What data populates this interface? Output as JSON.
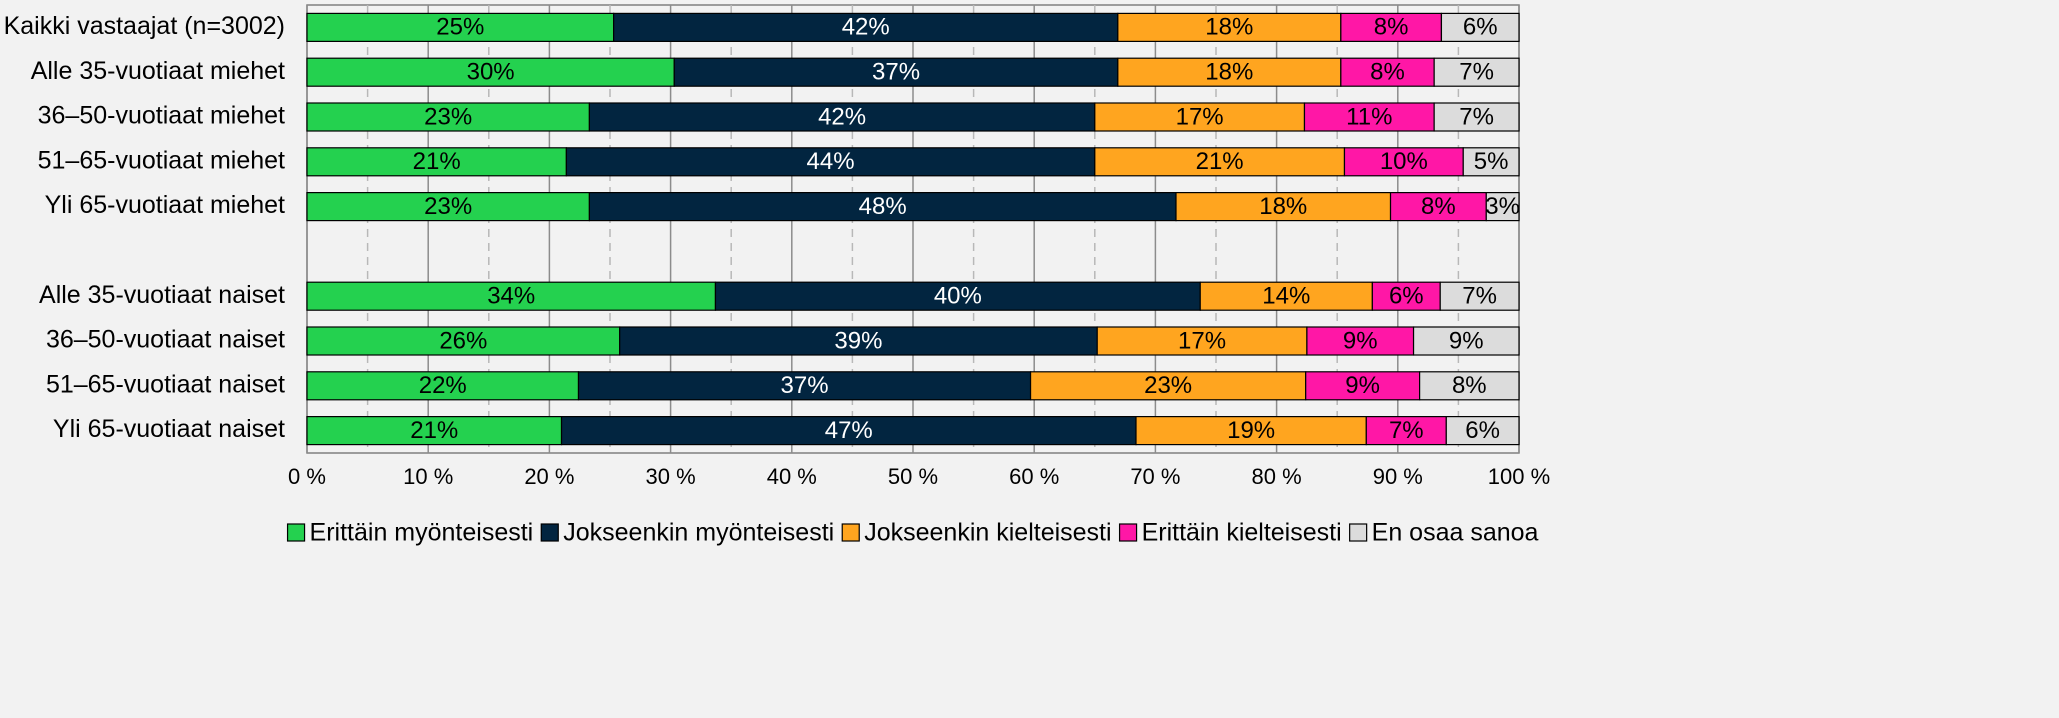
{
  "chart_data": {
    "type": "stacked-barh",
    "categories": [
      "Kaikki vastaajat (n=3002)",
      "Alle 35-vuotiaat miehet",
      "36–50-vuotiaat miehet",
      "51–65-vuotiaat miehet",
      "Yli 65-vuotiaat miehet",
      null,
      "Alle 35-vuotiaat naiset",
      "36–50-vuotiaat naiset",
      "51–65-vuotiaat naiset",
      "Yli 65-vuotiaat naiset"
    ],
    "series": [
      {
        "name": "Erittäin myönteisesti",
        "color": "#24d14f",
        "text_color": "#000000",
        "values": [
          25.3,
          30.3,
          23.3,
          21.4,
          23.3,
          null,
          33.7,
          25.8,
          22.4,
          21.0
        ],
        "value_labels": [
          "25%",
          "30%",
          "23%",
          "21%",
          "23%",
          null,
          "34%",
          "26%",
          "22%",
          "21%"
        ]
      },
      {
        "name": "Jokseenkin myönteisesti",
        "color": "#022540",
        "text_color": "#ffffff",
        "values": [
          41.6,
          36.6,
          41.7,
          43.6,
          48.4,
          null,
          40.0,
          39.4,
          37.3,
          47.4
        ],
        "value_labels": [
          "42%",
          "37%",
          "42%",
          "44%",
          "48%",
          null,
          "40%",
          "39%",
          "37%",
          "47%"
        ]
      },
      {
        "name": "Jokseenkin kielteisesti",
        "color": "#ffa51f",
        "text_color": "#000000",
        "values": [
          18.4,
          18.4,
          17.3,
          20.6,
          17.7,
          null,
          14.2,
          17.3,
          22.7,
          19.0
        ],
        "value_labels": [
          "18%",
          "18%",
          "17%",
          "21%",
          "18%",
          null,
          "14%",
          "17%",
          "23%",
          "19%"
        ]
      },
      {
        "name": "Erittäin kielteisesti",
        "color": "#ff17a6",
        "text_color": "#000000",
        "values": [
          8.3,
          7.7,
          10.7,
          9.8,
          7.9,
          null,
          5.6,
          8.8,
          9.4,
          6.6
        ],
        "value_labels": [
          "8%",
          "8%",
          "11%",
          "10%",
          "8%",
          null,
          "6%",
          "9%",
          "9%",
          "7%"
        ]
      },
      {
        "name": "En osaa sanoa",
        "color": "#dcdcdc",
        "text_color": "#000000",
        "values": [
          6.4,
          7.0,
          7.0,
          4.6,
          2.7,
          null,
          6.5,
          8.7,
          8.2,
          6.0
        ],
        "value_labels": [
          "6%",
          "7%",
          "7%",
          "5%",
          "3%",
          null,
          "7%",
          "9%",
          "8%",
          "6%"
        ]
      }
    ],
    "xlim": [
      0,
      100
    ],
    "xticks": [
      {
        "value": 0,
        "label": "0 %"
      },
      {
        "value": 10,
        "label": "10 %"
      },
      {
        "value": 20,
        "label": "20 %"
      },
      {
        "value": 30,
        "label": "30 %"
      },
      {
        "value": 40,
        "label": "40 %"
      },
      {
        "value": 50,
        "label": "50 %"
      },
      {
        "value": 60,
        "label": "60 %"
      },
      {
        "value": 70,
        "label": "70 %"
      },
      {
        "value": 80,
        "label": "80 %"
      },
      {
        "value": 90,
        "label": "90 %"
      },
      {
        "value": 100,
        "label": "100 %"
      }
    ],
    "xminorticks": [
      5,
      15,
      25,
      35,
      45,
      55,
      65,
      75,
      85,
      95
    ],
    "grid": true,
    "legend": "bottom"
  }
}
